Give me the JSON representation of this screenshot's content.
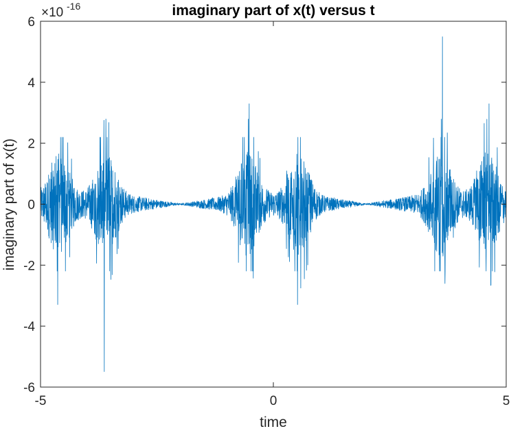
{
  "chart_data": {
    "type": "line",
    "title": "imaginary part of x(t) versus t",
    "xlabel": "time",
    "ylabel": "imaginary part of x(t)",
    "xlim": [
      -5,
      5
    ],
    "ylim": [
      -6,
      6
    ],
    "y_scale_exponent_label": "×10",
    "y_scale_exponent": "-16",
    "xticks": [
      -5,
      0,
      5
    ],
    "xtick_labels": [
      "-5",
      "0",
      "5"
    ],
    "yticks": [
      -6,
      -4,
      -2,
      0,
      2,
      4,
      6
    ],
    "ytick_labels": [
      "-6",
      "-4",
      "-2",
      "0",
      "2",
      "4",
      "6"
    ],
    "grid": false,
    "line_color": "#0072BD",
    "series": [
      {
        "description_values": "dense oscillating signal with bursts near the following centers",
        "burst_centers": [
          -4.6,
          -3.6,
          -0.55,
          0.55,
          3.6,
          4.6
        ],
        "burst_peak_positive": [
          2.2,
          2.2,
          3.3,
          2.2,
          5.5,
          3.3
        ],
        "burst_peak_negative": [
          -3.3,
          -5.5,
          -2.2,
          -3.3,
          -2.2,
          -2.2
        ],
        "nodes": [
          -2.0,
          2.0
        ],
        "x": [
          -5.0,
          -4.6,
          -4.5,
          -3.6,
          -3.55,
          -2.0,
          -0.55,
          -0.5,
          0.0,
          0.5,
          0.55,
          2.0,
          3.55,
          3.6,
          4.5,
          4.6,
          5.0
        ],
        "y": [
          0.8,
          2.2,
          -3.3,
          2.2,
          -5.5,
          0.0,
          3.3,
          -2.2,
          0.3,
          -3.3,
          2.2,
          0.0,
          5.5,
          -2.2,
          3.3,
          -2.2,
          0.8
        ]
      }
    ]
  }
}
